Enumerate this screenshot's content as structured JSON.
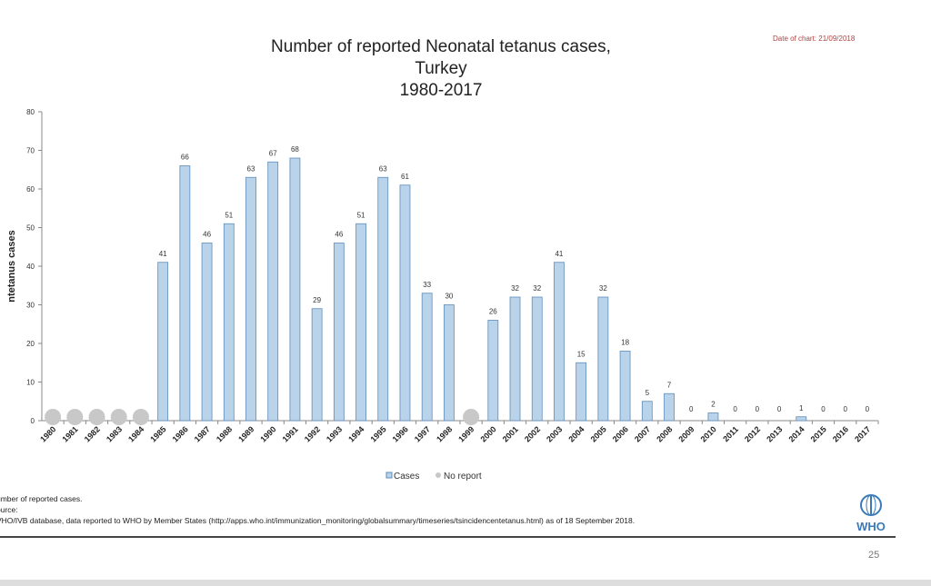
{
  "header": {
    "date_of_chart": "Date of chart: 21/09/2018"
  },
  "footer": {
    "note": "umber of reported cases.",
    "source_label": "ource:",
    "source_text": "VHO/IVB database, data reported to WHO by Member States (http://apps.who.int/immunization_monitoring/globalsummary/timeseries/tsincidencentetanus.html) as of 18 September 2018.",
    "logo_text": "WHO",
    "page_number": "25"
  },
  "chart_data": {
    "type": "bar",
    "title": [
      "Number of reported Neonatal tetanus cases,",
      "Turkey",
      "1980-2017"
    ],
    "ylabel": "ntetanus cases",
    "xlabel": "",
    "ylim": [
      0,
      80
    ],
    "yticks": [
      0,
      10,
      20,
      30,
      40,
      50,
      60,
      70,
      80
    ],
    "categories": [
      "1980",
      "1981",
      "1982",
      "1983",
      "1984",
      "1985",
      "1986",
      "1987",
      "1988",
      "1989",
      "1990",
      "1991",
      "1992",
      "1993",
      "1994",
      "1995",
      "1996",
      "1997",
      "1998",
      "1999",
      "2000",
      "2001",
      "2002",
      "2003",
      "2004",
      "2005",
      "2006",
      "2007",
      "2008",
      "2009",
      "2010",
      "2011",
      "2012",
      "2013",
      "2014",
      "2015",
      "2016",
      "2017"
    ],
    "series": [
      {
        "name": "Cases",
        "color": "#b9d3ea",
        "values": [
          null,
          null,
          null,
          null,
          null,
          41,
          66,
          46,
          51,
          63,
          67,
          68,
          29,
          46,
          51,
          63,
          61,
          33,
          30,
          null,
          26,
          32,
          32,
          41,
          15,
          32,
          18,
          5,
          7,
          0,
          2,
          0,
          0,
          0,
          1,
          0,
          0,
          0
        ]
      }
    ],
    "no_report": {
      "name": "No report",
      "color": "#c8c8c8",
      "categories": [
        "1980",
        "1981",
        "1982",
        "1983",
        "1984",
        "1999"
      ]
    },
    "legend": {
      "position": "bottom",
      "entries": [
        "Cases",
        "No report"
      ]
    },
    "grid": false
  }
}
